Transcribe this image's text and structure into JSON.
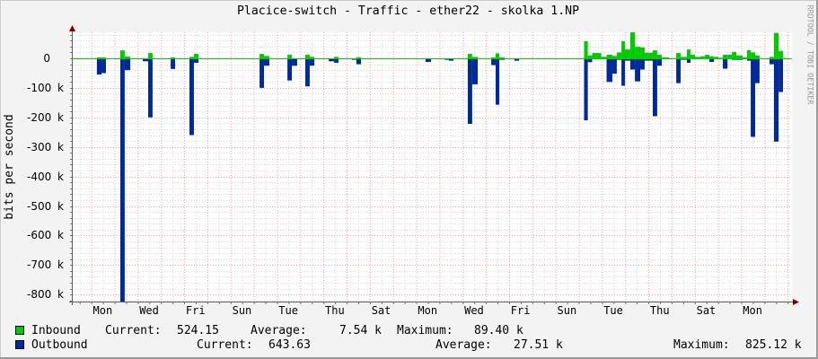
{
  "window": {
    "title": "Placice-switch - Traffic - ether22 - skolka 1.NP",
    "watermark": "RRDTOOL / TOBI OETIKER"
  },
  "legend": {
    "inbound": {
      "label": "Inbound",
      "color": "#00CC00",
      "current_label": "Current:",
      "current": "524.15",
      "average_label": "Average:",
      "average": "7.54 k",
      "maximum_label": "Maximum:",
      "maximum": "89.40 k"
    },
    "outbound": {
      "label": "Outbound",
      "color": "#002A97",
      "current_label": "Current:",
      "current": "643.63",
      "average_label": "Average:",
      "average": "27.51 k",
      "maximum_label": "Maximum:",
      "maximum": "825.12 k"
    }
  },
  "chart_data": {
    "type": "area",
    "title": "Placice-switch - Traffic - ether22 - skolka 1.NP",
    "xlabel": "",
    "ylabel": "bits per second",
    "y_unit": "k bits/s (outbound plotted negative)",
    "ylim": [
      -824,
      88
    ],
    "x_range_days": [
      0,
      31
    ],
    "grid": true,
    "legend_position": "bottom",
    "x_grid": {
      "first_major": 0.8,
      "major_every_days": 1,
      "minor_every_days": 0.5
    },
    "yticks": [
      0,
      -100,
      -200,
      -300,
      -400,
      -500,
      -600,
      -700,
      -800
    ],
    "ytick_labels": [
      "0",
      "-100 k",
      "-200 k",
      "-300 k",
      "-400 k",
      "-500 k",
      "-600 k",
      "-700 k",
      "-800 k"
    ],
    "xticks": [
      1.29,
      3.29,
      5.29,
      7.29,
      9.29,
      11.29,
      13.29,
      15.29,
      17.29,
      19.29,
      21.29,
      23.29,
      25.29,
      27.29,
      29.29
    ],
    "xtick_labels": [
      "Mon",
      "Wed",
      "Fri",
      "Sun",
      "Tue",
      "Thu",
      "Sat",
      "Mon",
      "Wed",
      "Fri",
      "Sun",
      "Tue",
      "Thu",
      "Sat",
      "Mon"
    ],
    "series": [
      {
        "name": "Inbound",
        "color": "#00CC00"
      },
      {
        "name": "Outbound",
        "color": "#002A97"
      }
    ],
    "segments_columns": [
      "start_day",
      "end_day",
      "inbound_k",
      "outbound_k"
    ],
    "segments": [
      [
        1.04,
        1.24,
        3,
        -55
      ],
      [
        1.24,
        1.43,
        3,
        -50
      ],
      [
        2.05,
        2.24,
        27,
        -825
      ],
      [
        2.24,
        2.48,
        6,
        -40
      ],
      [
        2.48,
        2.67,
        0,
        -3
      ],
      [
        3.02,
        3.25,
        0,
        -10
      ],
      [
        3.25,
        3.44,
        18,
        -200
      ],
      [
        3.44,
        3.64,
        0,
        -3
      ],
      [
        3.83,
        4.22,
        0,
        -3
      ],
      [
        4.22,
        4.41,
        3,
        -36
      ],
      [
        5.03,
        5.22,
        5,
        -260
      ],
      [
        5.22,
        5.42,
        15,
        -15
      ],
      [
        8.05,
        8.24,
        15,
        -100
      ],
      [
        8.24,
        8.47,
        8,
        -25
      ],
      [
        9.01,
        9.25,
        0,
        -3
      ],
      [
        9.25,
        9.44,
        12,
        -75
      ],
      [
        9.44,
        9.67,
        0,
        -25
      ],
      [
        10.02,
        10.21,
        12,
        -95
      ],
      [
        10.21,
        10.41,
        5,
        -25
      ],
      [
        11.03,
        11.26,
        0,
        -10
      ],
      [
        11.26,
        11.45,
        5,
        -15
      ],
      [
        12.03,
        12.22,
        0,
        -5
      ],
      [
        12.22,
        12.42,
        4,
        -20
      ],
      [
        15.2,
        15.44,
        0,
        -12
      ],
      [
        16.02,
        16.21,
        0,
        -5
      ],
      [
        16.21,
        16.4,
        0,
        -8
      ],
      [
        17.02,
        17.21,
        15,
        -222
      ],
      [
        17.21,
        17.45,
        5,
        -88
      ],
      [
        18.03,
        18.22,
        3,
        -23
      ],
      [
        18.22,
        18.38,
        17,
        -157
      ],
      [
        18.38,
        18.61,
        3,
        -5
      ],
      [
        19.03,
        19.23,
        0,
        -8
      ],
      [
        22.03,
        22.19,
        58,
        -210
      ],
      [
        22.19,
        22.38,
        10,
        -13
      ],
      [
        22.38,
        22.77,
        18,
        -3
      ],
      [
        22.77,
        23.0,
        5,
        -3
      ],
      [
        23.0,
        23.25,
        12,
        -80
      ],
      [
        23.25,
        23.44,
        8,
        -52
      ],
      [
        23.44,
        23.64,
        20,
        -5
      ],
      [
        23.64,
        23.79,
        58,
        -93
      ],
      [
        23.79,
        24.02,
        30,
        -8
      ],
      [
        24.02,
        24.22,
        88,
        -38
      ],
      [
        24.22,
        24.45,
        39,
        -78
      ],
      [
        24.45,
        24.64,
        37,
        -38
      ],
      [
        24.64,
        24.99,
        19,
        -8
      ],
      [
        24.99,
        25.18,
        27,
        -196
      ],
      [
        25.18,
        25.38,
        12,
        -25
      ],
      [
        25.38,
        25.69,
        3,
        -3
      ],
      [
        26.0,
        26.19,
        18,
        -84
      ],
      [
        26.19,
        26.46,
        5,
        -5
      ],
      [
        26.46,
        26.62,
        30,
        -15
      ],
      [
        26.62,
        26.81,
        12,
        -3
      ],
      [
        26.81,
        27.05,
        5,
        -1
      ],
      [
        27.05,
        27.24,
        7,
        -1
      ],
      [
        27.24,
        27.43,
        12,
        -3
      ],
      [
        27.43,
        27.63,
        7,
        -12
      ],
      [
        27.63,
        27.82,
        5,
        -1
      ],
      [
        27.82,
        28.01,
        2,
        -1
      ],
      [
        28.01,
        28.21,
        12,
        -35
      ],
      [
        28.21,
        28.4,
        12,
        -3
      ],
      [
        28.4,
        28.59,
        22,
        -5
      ],
      [
        28.59,
        28.86,
        10,
        -5
      ],
      [
        28.86,
        29.05,
        3,
        -3
      ],
      [
        29.05,
        29.21,
        28,
        -8
      ],
      [
        29.21,
        29.4,
        20,
        -266
      ],
      [
        29.4,
        29.59,
        10,
        -84
      ],
      [
        30.02,
        30.21,
        5,
        -20
      ],
      [
        30.21,
        30.41,
        86,
        -282
      ],
      [
        30.41,
        30.6,
        25,
        -114
      ],
      [
        30.6,
        30.79,
        1,
        -1
      ]
    ]
  }
}
